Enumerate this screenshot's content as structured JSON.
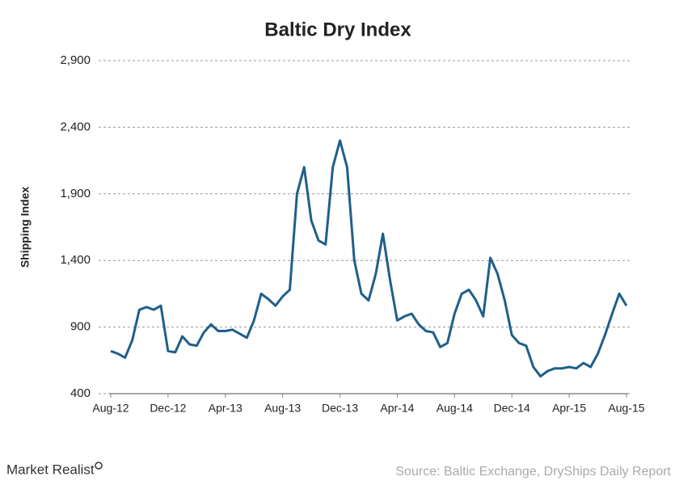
{
  "chart_data": {
    "type": "line",
    "title": "Baltic Dry Index",
    "y_label": "Shipping Index",
    "categories": [
      "Aug-12",
      null,
      null,
      null,
      null,
      null,
      null,
      null,
      "Dec-12",
      null,
      null,
      null,
      null,
      null,
      null,
      null,
      "Apr-13",
      null,
      null,
      null,
      null,
      null,
      null,
      null,
      "Aug-13",
      null,
      null,
      null,
      null,
      null,
      null,
      null,
      "Dec-13",
      null,
      null,
      null,
      null,
      null,
      null,
      null,
      "Apr-14",
      null,
      null,
      null,
      null,
      null,
      null,
      null,
      "Aug-14",
      null,
      null,
      null,
      null,
      null,
      null,
      null,
      "Dec-14",
      null,
      null,
      null,
      null,
      null,
      null,
      null,
      "Apr-15",
      null,
      null,
      null,
      null,
      null,
      null,
      null,
      "Aug-15"
    ],
    "series": [
      {
        "name": "Baltic Dry Index",
        "color": "#1f5f8b",
        "values": [
          720,
          700,
          670,
          800,
          1030,
          1050,
          1030,
          1060,
          720,
          710,
          830,
          770,
          760,
          860,
          920,
          870,
          870,
          880,
          850,
          820,
          950,
          1150,
          1110,
          1060,
          1130,
          1180,
          1900,
          2100,
          1700,
          1550,
          1520,
          2100,
          2300,
          2100,
          1400,
          1150,
          1100,
          1300,
          1600,
          1250,
          950,
          980,
          1000,
          920,
          870,
          860,
          750,
          780,
          1000,
          1150,
          1180,
          1100,
          980,
          1420,
          1300,
          1100,
          840,
          780,
          760,
          600,
          530,
          570,
          590,
          590,
          600,
          590,
          630,
          600,
          700,
          840,
          1000,
          1150,
          1060
        ]
      }
    ],
    "ylim": [
      400,
      2900
    ],
    "yticks": [
      400,
      900,
      {
        "value": 1400,
        "label": "1,400"
      },
      {
        "value": 1900,
        "label": "1,900"
      },
      {
        "value": 2400,
        "label": "2,400"
      },
      {
        "value": 2900,
        "label": "2,900"
      }
    ],
    "grid": true
  },
  "brand": "Market Realist",
  "source": "Source: Baltic Exchange, DryShips Daily Report"
}
